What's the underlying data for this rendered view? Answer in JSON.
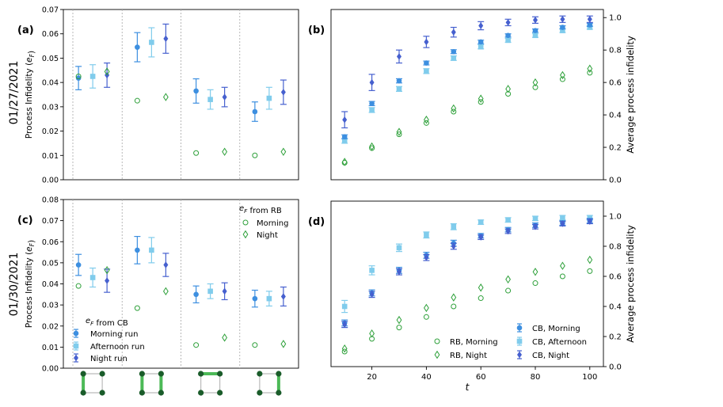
{
  "colors": {
    "morning": "#3d8fe0",
    "afternoon": "#80ccec",
    "night": "#4660cf",
    "rb": "#2ea03a",
    "divider": "#b0b0b0",
    "qubit": "#1a5c2a",
    "edge": "#4cba57",
    "edge_inactive": "#bbbbbb"
  },
  "chart_data": [
    {
      "id": "a",
      "type": "scatter",
      "panel_label": "(a)",
      "date_label": "01/27/2021",
      "ylabel": "Process Infidelity (e_F)",
      "ylim": [
        0,
        0.07
      ],
      "yticks": [
        0,
        0.01,
        0.02,
        0.03,
        0.04,
        0.05,
        0.06,
        0.07
      ],
      "ytick_labels": [
        "0.00",
        "0.01",
        "0.02",
        "0.03",
        "0.04",
        "0.05",
        "0.06",
        "0.07"
      ],
      "groups": [
        "pair-1",
        "pair-2",
        "pair-3",
        "pair-4"
      ],
      "cb_series": [
        {
          "name": "Morning run",
          "values": [
            0.0418,
            0.0545,
            0.0365,
            0.028
          ],
          "err": [
            0.0048,
            0.006,
            0.005,
            0.004
          ]
        },
        {
          "name": "Afternoon run",
          "values": [
            0.0425,
            0.0565,
            0.033,
            0.0335
          ],
          "err": [
            0.0048,
            0.006,
            0.004,
            0.0045
          ]
        },
        {
          "name": "Night run",
          "values": [
            0.043,
            0.058,
            0.034,
            0.036
          ],
          "err": [
            0.005,
            0.006,
            0.004,
            0.005
          ]
        }
      ],
      "rb_series": [
        {
          "name": "Morning",
          "values": [
            0.0425,
            0.0325,
            0.011,
            0.01
          ]
        },
        {
          "name": "Night",
          "values": [
            0.0445,
            0.034,
            0.0115,
            0.0115
          ]
        }
      ]
    },
    {
      "id": "b",
      "type": "scatter",
      "panel_label": "(b)",
      "ylabel": "Average process infidelity",
      "ylim": [
        0,
        1.05
      ],
      "yticks": [
        0,
        0.2,
        0.4,
        0.6,
        0.8,
        1.0
      ],
      "ytick_labels": [
        "0.0",
        "0.2",
        "0.4",
        "0.6",
        "0.8",
        "1.0"
      ],
      "x": [
        10,
        20,
        30,
        40,
        50,
        60,
        70,
        80,
        90,
        100
      ],
      "xlim": [
        5,
        105
      ],
      "series": [
        {
          "name": "CB, Morning",
          "values": [
            0.265,
            0.47,
            0.61,
            0.72,
            0.79,
            0.85,
            0.89,
            0.92,
            0.94,
            0.955
          ],
          "err": [
            0.012,
            0.013,
            0.013,
            0.012,
            0.012,
            0.011,
            0.01,
            0.01,
            0.01,
            0.01
          ]
        },
        {
          "name": "CB, Afternoon",
          "values": [
            0.24,
            0.43,
            0.56,
            0.67,
            0.75,
            0.82,
            0.86,
            0.89,
            0.92,
            0.94
          ],
          "err": [
            0.015,
            0.015,
            0.015,
            0.015,
            0.014,
            0.013,
            0.012,
            0.012,
            0.012,
            0.012
          ]
        },
        {
          "name": "CB, Night",
          "values": [
            0.37,
            0.6,
            0.76,
            0.85,
            0.91,
            0.95,
            0.97,
            0.985,
            0.99,
            0.99
          ],
          "err": [
            0.05,
            0.05,
            0.04,
            0.035,
            0.03,
            0.025,
            0.02,
            0.02,
            0.02,
            0.02
          ]
        },
        {
          "name": "RB, Morning",
          "values": [
            0.105,
            0.195,
            0.28,
            0.35,
            0.42,
            0.48,
            0.53,
            0.57,
            0.62,
            0.66
          ]
        },
        {
          "name": "RB, Night",
          "values": [
            0.11,
            0.205,
            0.295,
            0.37,
            0.44,
            0.5,
            0.56,
            0.6,
            0.645,
            0.685
          ]
        }
      ]
    },
    {
      "id": "c",
      "type": "scatter",
      "panel_label": "(c)",
      "date_label": "01/30/2021",
      "ylabel": "Process Infidelity (e_F)",
      "ylim": [
        0,
        0.08
      ],
      "yticks": [
        0,
        0.01,
        0.02,
        0.03,
        0.04,
        0.05,
        0.06,
        0.07,
        0.08
      ],
      "ytick_labels": [
        "0.00",
        "0.01",
        "0.02",
        "0.03",
        "0.04",
        "0.05",
        "0.06",
        "0.07",
        "0.08"
      ],
      "xlabel": "",
      "groups": [
        "pair-1",
        "pair-2",
        "pair-3",
        "pair-4"
      ],
      "cb_series": [
        {
          "name": "Morning run",
          "values": [
            0.049,
            0.056,
            0.035,
            0.033
          ],
          "err": [
            0.005,
            0.0065,
            0.004,
            0.004
          ]
        },
        {
          "name": "Afternoon run",
          "values": [
            0.043,
            0.056,
            0.0365,
            0.033
          ],
          "err": [
            0.0045,
            0.006,
            0.0035,
            0.0035
          ]
        },
        {
          "name": "Night run",
          "values": [
            0.0415,
            0.049,
            0.0365,
            0.034
          ],
          "err": [
            0.0055,
            0.0055,
            0.004,
            0.0045
          ]
        }
      ],
      "rb_series": [
        {
          "name": "Morning",
          "values": [
            0.039,
            0.0285,
            0.011,
            0.011
          ]
        },
        {
          "name": "Night",
          "values": [
            0.0465,
            0.0365,
            0.0145,
            0.0115
          ]
        }
      ]
    },
    {
      "id": "d",
      "type": "scatter",
      "panel_label": "(d)",
      "ylabel": "Average process infidelity",
      "xlabel": "t",
      "ylim": [
        0,
        1.1
      ],
      "yticks": [
        0,
        0.2,
        0.4,
        0.6,
        0.8,
        1.0
      ],
      "ytick_labels": [
        "0.0",
        "0.2",
        "0.4",
        "0.6",
        "0.8",
        "1.0"
      ],
      "x": [
        10,
        20,
        30,
        40,
        50,
        60,
        70,
        80,
        90,
        100
      ],
      "xlim": [
        5,
        105
      ],
      "xticks": [
        20,
        40,
        60,
        80,
        100
      ],
      "xtick_labels": [
        "20",
        "40",
        "60",
        "80",
        "100"
      ],
      "series": [
        {
          "name": "CB, Morning",
          "values": [
            0.29,
            0.49,
            0.64,
            0.74,
            0.82,
            0.87,
            0.91,
            0.94,
            0.955,
            0.97
          ],
          "err": [
            0.02,
            0.02,
            0.02,
            0.02,
            0.02,
            0.015,
            0.015,
            0.015,
            0.015,
            0.015
          ]
        },
        {
          "name": "CB, Afternoon",
          "values": [
            0.4,
            0.64,
            0.79,
            0.875,
            0.93,
            0.96,
            0.975,
            0.985,
            0.99,
            0.99
          ],
          "err": [
            0.04,
            0.03,
            0.025,
            0.02,
            0.02,
            0.015,
            0.015,
            0.015,
            0.015,
            0.015
          ]
        },
        {
          "name": "CB, Night",
          "values": [
            0.28,
            0.48,
            0.63,
            0.725,
            0.8,
            0.86,
            0.9,
            0.93,
            0.95,
            0.965
          ],
          "err": [
            0.02,
            0.02,
            0.02,
            0.02,
            0.02,
            0.015,
            0.015,
            0.015,
            0.015,
            0.015
          ]
        },
        {
          "name": "RB, Morning",
          "values": [
            0.1,
            0.185,
            0.26,
            0.33,
            0.4,
            0.455,
            0.505,
            0.555,
            0.6,
            0.635
          ]
        },
        {
          "name": "RB, Night",
          "values": [
            0.12,
            0.22,
            0.31,
            0.39,
            0.46,
            0.525,
            0.58,
            0.63,
            0.67,
            0.71
          ]
        }
      ]
    }
  ],
  "legends": {
    "rb_title": "e_F from RB",
    "rb_items": [
      "Morning",
      "Night"
    ],
    "cb_title": "e_F from CB",
    "cb_items": [
      "Morning run",
      "Afternoon run",
      "Night run"
    ],
    "d_items_left": [
      "RB, Morning",
      "RB, Night"
    ],
    "d_items_right": [
      "CB, Morning",
      "CB, Afternoon",
      "CB, Night"
    ]
  },
  "qubit_diagrams": [
    {
      "name": "pair-1",
      "active_edge": "left"
    },
    {
      "name": "pair-2",
      "active_edge": "left-right"
    },
    {
      "name": "pair-3",
      "active_edge": "top"
    },
    {
      "name": "pair-4",
      "active_edge": "right"
    }
  ]
}
